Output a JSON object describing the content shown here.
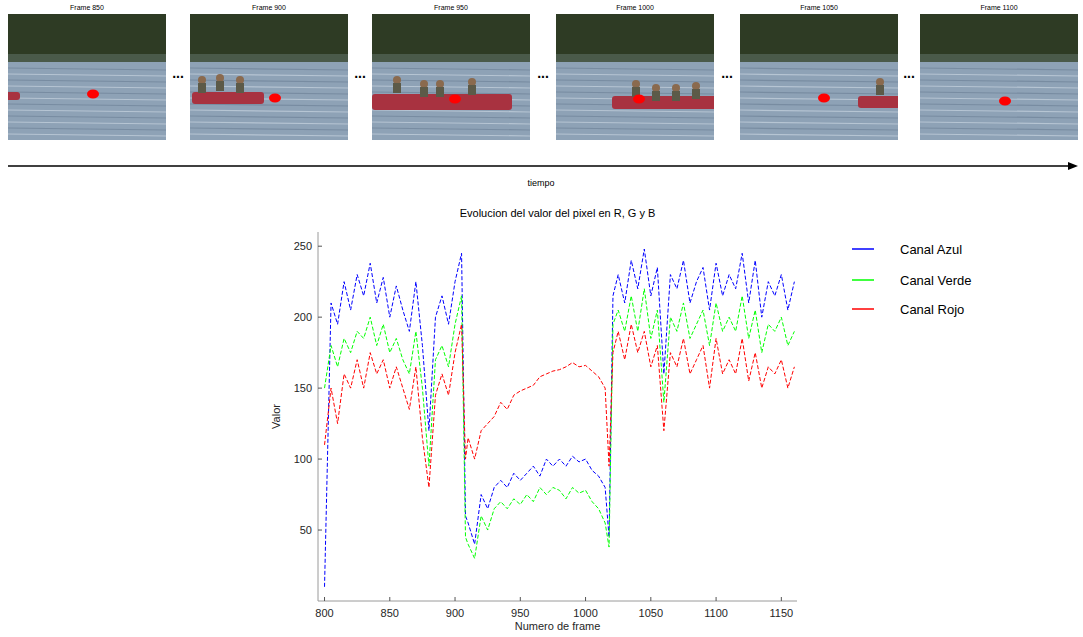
{
  "chart_data": {
    "type": "line",
    "title": "Evolucion del valor del pixel en R, G y B",
    "x_label": "Numero de frame",
    "y_label": "Valor",
    "x": [
      800,
      805,
      810,
      815,
      820,
      825,
      830,
      835,
      840,
      845,
      850,
      855,
      860,
      865,
      870,
      875,
      880,
      885,
      890,
      895,
      900,
      905,
      908,
      910,
      915,
      920,
      925,
      930,
      935,
      940,
      945,
      950,
      955,
      960,
      965,
      970,
      975,
      980,
      985,
      990,
      995,
      1000,
      1005,
      1010,
      1015,
      1018,
      1021,
      1025,
      1030,
      1035,
      1040,
      1045,
      1050,
      1055,
      1060,
      1065,
      1070,
      1075,
      1080,
      1085,
      1090,
      1095,
      1100,
      1105,
      1110,
      1115,
      1120,
      1125,
      1130,
      1135,
      1140,
      1145,
      1150,
      1155,
      1160
    ],
    "series": [
      {
        "name": "Canal Azul",
        "color": "#0000ff",
        "line_style": "dashed",
        "values": [
          10,
          210,
          195,
          225,
          205,
          230,
          215,
          238,
          210,
          228,
          200,
          222,
          205,
          190,
          225,
          180,
          120,
          200,
          215,
          195,
          225,
          245,
          60,
          55,
          40,
          75,
          65,
          80,
          85,
          80,
          90,
          85,
          90,
          95,
          88,
          100,
          95,
          100,
          95,
          102,
          98,
          100,
          92,
          88,
          80,
          45,
          215,
          230,
          210,
          240,
          220,
          248,
          215,
          235,
          160,
          230,
          220,
          240,
          210,
          225,
          235,
          205,
          238,
          215,
          230,
          220,
          245,
          210,
          240,
          200,
          225,
          215,
          230,
          205,
          225
        ]
      },
      {
        "name": "Canal Verde",
        "color": "#00ff00",
        "line_style": "dashed",
        "values": [
          150,
          180,
          165,
          185,
          175,
          190,
          185,
          200,
          180,
          195,
          175,
          185,
          170,
          160,
          190,
          150,
          95,
          170,
          180,
          165,
          195,
          215,
          45,
          40,
          30,
          60,
          50,
          65,
          70,
          65,
          72,
          68,
          75,
          70,
          80,
          75,
          80,
          78,
          72,
          80,
          76,
          78,
          70,
          65,
          55,
          38,
          195,
          205,
          190,
          215,
          190,
          220,
          185,
          205,
          140,
          200,
          190,
          210,
          185,
          195,
          205,
          180,
          210,
          190,
          200,
          190,
          215,
          185,
          205,
          175,
          195,
          190,
          200,
          180,
          190
        ]
      },
      {
        "name": "Canal Rojo",
        "color": "#ff0000",
        "line_style": "dashed",
        "values": [
          110,
          150,
          125,
          160,
          150,
          170,
          150,
          175,
          160,
          170,
          150,
          165,
          150,
          135,
          165,
          115,
          80,
          145,
          160,
          145,
          175,
          195,
          100,
          115,
          100,
          120,
          125,
          130,
          140,
          135,
          145,
          148,
          150,
          152,
          158,
          160,
          162,
          163,
          165,
          168,
          165,
          166,
          162,
          158,
          150,
          95,
          175,
          190,
          170,
          195,
          175,
          190,
          165,
          180,
          120,
          175,
          165,
          185,
          160,
          170,
          180,
          150,
          185,
          160,
          170,
          160,
          185,
          155,
          175,
          150,
          165,
          160,
          170,
          150,
          165
        ]
      }
    ],
    "xlim": [
      795,
      1162
    ],
    "xticks": [
      800,
      850,
      900,
      950,
      1000,
      1050,
      1100,
      1150
    ],
    "ylim": [
      0,
      260
    ],
    "yticks": [
      50,
      100,
      150,
      200,
      250
    ],
    "grid": false,
    "legend": "right"
  },
  "frames": {
    "labels": [
      "Frame 850",
      "Frame 900",
      "Frame 950",
      "Frame 1000",
      "Frame 1050",
      "Frame 1100"
    ],
    "separator": "..."
  },
  "timeline": {
    "label": "tiempo"
  }
}
